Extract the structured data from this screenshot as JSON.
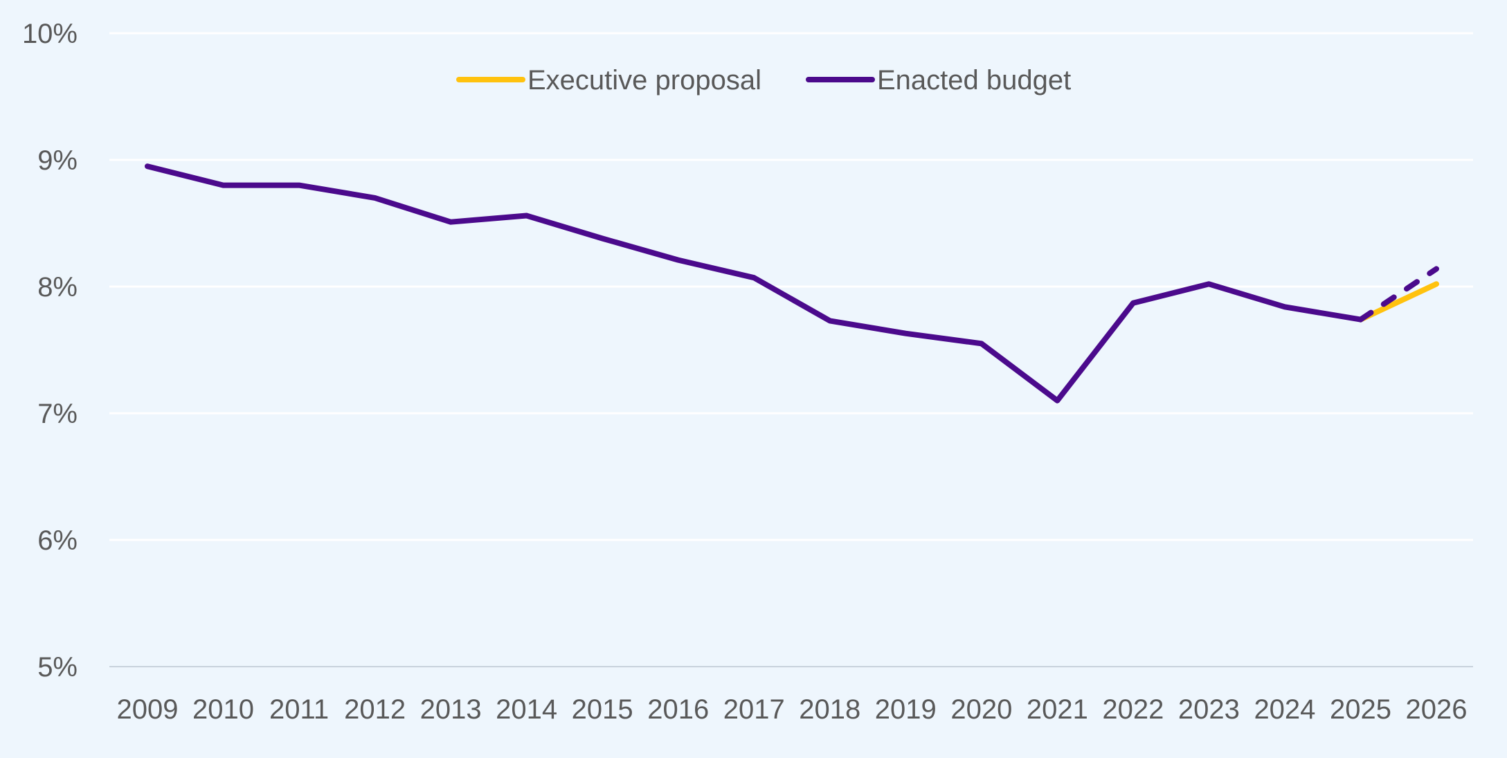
{
  "chart_data": {
    "type": "line",
    "title": "",
    "xlabel": "",
    "ylabel": "",
    "categories": [
      "2009",
      "2010",
      "2011",
      "2012",
      "2013",
      "2014",
      "2015",
      "2016",
      "2017",
      "2018",
      "2019",
      "2020",
      "2021",
      "2022",
      "2023",
      "2024",
      "2025",
      "2026"
    ],
    "ylim": [
      5,
      10
    ],
    "yticks": [
      5,
      6,
      7,
      8,
      9,
      10
    ],
    "ytick_labels": [
      "5%",
      "6%",
      "7%",
      "8%",
      "9%",
      "10%"
    ],
    "grid": true,
    "legend_position": "top-center",
    "series": [
      {
        "name": "Executive proposal",
        "color": "#ffc20e",
        "style": "solid",
        "values": [
          null,
          null,
          null,
          null,
          null,
          null,
          null,
          null,
          null,
          null,
          null,
          null,
          null,
          null,
          null,
          null,
          7.74,
          8.02
        ]
      },
      {
        "name": "Enacted budget",
        "color": "#4b0a8c",
        "style": "solid",
        "values": [
          8.95,
          8.8,
          8.8,
          8.7,
          8.51,
          8.56,
          8.38,
          8.21,
          8.07,
          7.73,
          7.63,
          7.55,
          7.1,
          7.87,
          8.02,
          7.84,
          7.74,
          null
        ],
        "projection": {
          "style": "dashed",
          "from_index": 16,
          "values": [
            7.74,
            8.14
          ]
        }
      }
    ],
    "legend": [
      {
        "label": "Executive proposal",
        "color": "#ffc20e"
      },
      {
        "label": "Enacted budget",
        "color": "#4b0a8c"
      }
    ]
  }
}
